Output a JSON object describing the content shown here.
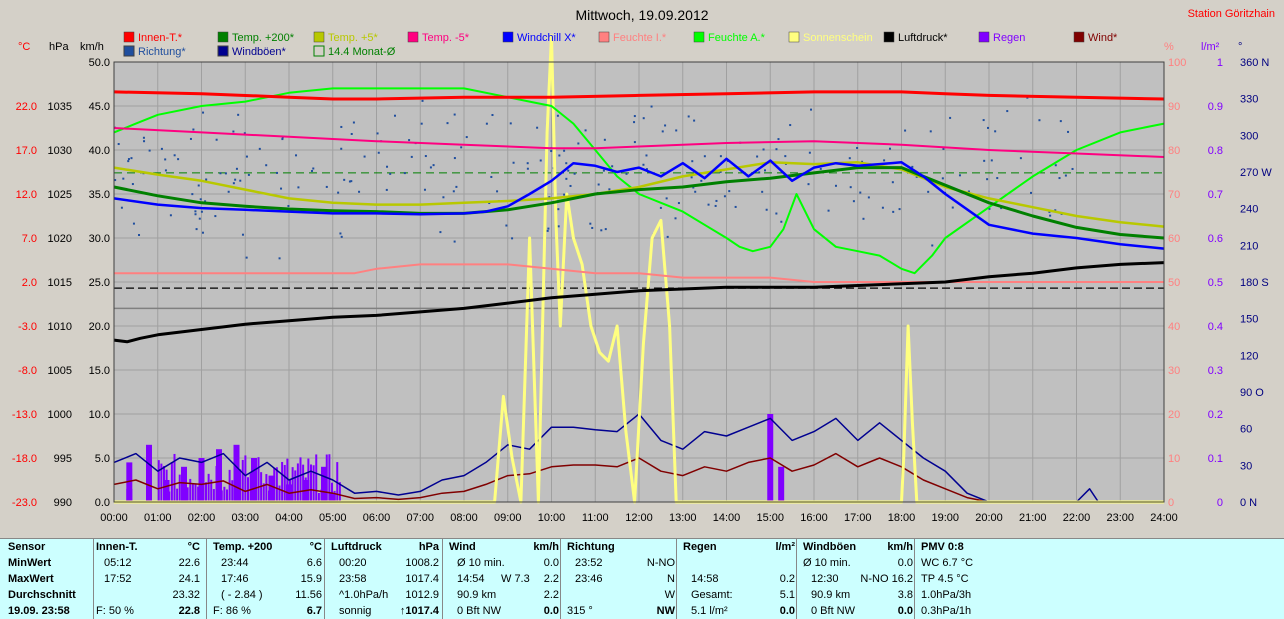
{
  "title": "Mittwoch, 19.09.2012",
  "station": "Station Göritzhain",
  "colors": {
    "innen": "#ff0000",
    "richtung": "#1f4e9e",
    "temp200": "#008000",
    "windboeen": "#000090",
    "temp5": "#b8c800",
    "monat": "#008000",
    "tempm5": "#ff0080",
    "windchill": "#0000ff",
    "feuchteI": "#ff8080",
    "feuchteA": "#00ff00",
    "sonne": "#ffff80",
    "luftdruck": "#000000",
    "regen": "#8000ff",
    "wind": "#800000"
  },
  "legend_row1": [
    "Innen-T.*",
    "Temp. +200*",
    "Temp. +5*",
    "Temp. -5*",
    "Windchill X*",
    "Feuchte I.*",
    "Feuchte A.*",
    "Sonnenschein",
    "Luftdruck*",
    "Regen",
    "Wind*"
  ],
  "legend_row2": [
    "Richtung*",
    "Windböen*",
    "14.4 Monat-Ø"
  ],
  "axis_headers": {
    "c": "°C",
    "hpa": "hPa",
    "kmh": "km/h",
    "pct": "%",
    "lm2": "l/m²",
    "deg": "°"
  },
  "chart_data": {
    "type": "line",
    "title": "Mittwoch, 19.09.2012",
    "x_ticks": [
      "00:00",
      "01:00",
      "02:00",
      "03:00",
      "04:00",
      "05:00",
      "06:00",
      "07:00",
      "08:00",
      "09:00",
      "10:00",
      "11:00",
      "12:00",
      "13:00",
      "14:00",
      "15:00",
      "16:00",
      "17:00",
      "18:00",
      "19:00",
      "20:00",
      "21:00",
      "22:00",
      "23:00",
      "24:00"
    ],
    "y_celsius_ticks": [
      "22.0",
      "17.0",
      "12.0",
      "7.0",
      "2.0",
      "-3.0",
      "-8.0",
      "-13.0",
      "-18.0",
      "-23.0"
    ],
    "y_hpa_ticks": [
      "1035",
      "1030",
      "1025",
      "1020",
      "1015",
      "1010",
      "1005",
      "1000",
      "995",
      "990"
    ],
    "y_kmh_ticks": [
      "50.0",
      "45.0",
      "40.0",
      "35.0",
      "30.0",
      "25.0",
      "20.0",
      "15.0",
      "10.0",
      "5.0",
      "0.0"
    ],
    "y_pct_ticks": [
      "100",
      "90",
      "80",
      "70",
      "60",
      "50",
      "40",
      "30",
      "20",
      "10",
      "0"
    ],
    "y_lm2_ticks": [
      "1",
      "0.9",
      "0.8",
      "0.7",
      "0.6",
      "0.5",
      "0.4",
      "0.3",
      "0.2",
      "0.1",
      "0"
    ],
    "y_deg_ticks": [
      "360 N",
      "330",
      "300",
      "270 W",
      "240",
      "210",
      "180 S",
      "150",
      "120",
      "90 O",
      "60",
      "30",
      "0 N"
    ],
    "ylim_celsius": [
      -23,
      27
    ],
    "ylim_hpa": [
      990,
      1040
    ],
    "ylim_kmh": [
      0,
      50
    ],
    "ylim_pct": [
      0,
      100
    ],
    "ylim_lm2": [
      0,
      1
    ],
    "ylim_deg": [
      0,
      360
    ],
    "ref_line_celsius": 14.4,
    "series": [
      {
        "key": "innen",
        "axis": "celsius",
        "x": [
          0,
          2,
          4,
          5,
          6,
          8,
          10,
          12,
          14,
          16,
          18,
          19,
          20,
          22,
          24
        ],
        "y": [
          23.6,
          23.4,
          23.0,
          22.8,
          22.8,
          23.0,
          23.0,
          23.2,
          23.4,
          23.6,
          23.6,
          23.4,
          23.2,
          23.0,
          22.8
        ]
      },
      {
        "key": "tempm5",
        "axis": "celsius",
        "x": [
          0,
          2,
          4,
          6,
          8,
          10,
          11,
          12,
          14,
          16,
          18,
          20,
          22,
          24
        ],
        "y": [
          19.5,
          19.0,
          18.5,
          18.0,
          17.6,
          17.2,
          17.2,
          17.4,
          17.8,
          18.0,
          17.6,
          17.0,
          16.6,
          16.2
        ]
      },
      {
        "key": "feuchteA",
        "axis": "pct",
        "x": [
          0,
          0.5,
          1,
          2,
          3,
          4,
          5,
          6,
          7,
          8,
          9,
          9.5,
          10,
          10.5,
          11,
          11.5,
          12,
          12.5,
          13,
          13.5,
          14,
          14.3,
          14.6,
          15,
          15.3,
          15.6,
          16,
          16.5,
          17,
          17.5,
          18,
          18.3,
          18.7,
          19,
          20,
          21,
          22,
          23,
          24
        ],
        "y": [
          84,
          86,
          88,
          90,
          91,
          93,
          94,
          94,
          94,
          94,
          92,
          91,
          90,
          86,
          80,
          74,
          70,
          68,
          66,
          63,
          60,
          58,
          57,
          58,
          62,
          70,
          62,
          58,
          57,
          56,
          53,
          52,
          56,
          60,
          67,
          74,
          80,
          84,
          86
        ]
      },
      {
        "key": "temp5",
        "axis": "celsius",
        "x": [
          0,
          1,
          2,
          3,
          4,
          5,
          6,
          7,
          8,
          9,
          10,
          11,
          12,
          13,
          14,
          15,
          16,
          17,
          18,
          19,
          20,
          21,
          22,
          23,
          24
        ],
        "y": [
          15.0,
          14.2,
          13.5,
          12.5,
          11.5,
          11.0,
          10.8,
          10.8,
          11.0,
          11.2,
          11.5,
          12.0,
          12.8,
          14.0,
          14.8,
          15.6,
          15.4,
          15.6,
          14.8,
          12.8,
          11.5,
          10.5,
          9.5,
          8.8,
          8.3
        ]
      },
      {
        "key": "temp200",
        "axis": "celsius",
        "x": [
          0,
          1,
          2,
          3,
          4,
          5,
          6,
          7,
          8,
          9,
          10,
          11,
          12,
          13,
          14,
          15,
          16,
          17,
          18,
          19,
          20,
          21,
          22,
          23,
          24
        ],
        "y": [
          12.8,
          11.8,
          11.0,
          10.6,
          10.3,
          10.1,
          10.0,
          9.8,
          9.8,
          10.2,
          11.0,
          12.0,
          12.5,
          12.8,
          13.4,
          13.8,
          14.4,
          15.0,
          15.0,
          13.0,
          11.0,
          9.5,
          8.2,
          7.4,
          7.0
        ]
      },
      {
        "key": "windchill",
        "axis": "celsius",
        "x": [
          0,
          1,
          2,
          3,
          4,
          5,
          6,
          7,
          8,
          8.5,
          9,
          9.5,
          10,
          10.5,
          11,
          11.5,
          12,
          12.5,
          13,
          13.5,
          14,
          14.5,
          15,
          15.5,
          16,
          16.5,
          17,
          17.5,
          18,
          18.5,
          19,
          20,
          21,
          22,
          23,
          24
        ],
        "y": [
          11.5,
          10.8,
          10.4,
          10.2,
          10.0,
          9.8,
          9.8,
          9.7,
          9.8,
          10.0,
          10.6,
          12.0,
          13.5,
          15.5,
          15.2,
          14.5,
          15.0,
          14.0,
          15.5,
          13.8,
          16.0,
          14.0,
          15.8,
          13.5,
          15.0,
          15.5,
          15.2,
          15.4,
          15.6,
          14.0,
          12.0,
          8.5,
          7.5,
          7.0,
          6.3,
          5.8
        ]
      },
      {
        "key": "feuchteI",
        "axis": "pct",
        "x": [
          0,
          2,
          4,
          5,
          5.5,
          6,
          7,
          8,
          9,
          10,
          11,
          12,
          13,
          14,
          15,
          16,
          17,
          18,
          19,
          20,
          21,
          22,
          23,
          24
        ],
        "y": [
          52,
          52,
          52,
          52,
          52,
          53,
          54,
          54,
          54,
          53,
          52,
          52,
          51,
          51,
          51,
          50,
          50,
          50,
          50,
          50,
          50,
          50,
          50,
          50
        ]
      },
      {
        "key": "luftdruck",
        "axis": "hpa",
        "x": [
          0,
          0.3,
          0.6,
          1,
          2,
          3,
          4,
          5,
          6,
          7,
          8,
          9,
          10,
          11,
          12,
          13,
          14,
          15,
          16,
          17,
          18,
          19,
          20,
          21,
          22,
          23,
          24
        ],
        "y": [
          1008.4,
          1008.2,
          1008.6,
          1009.0,
          1009.6,
          1010.2,
          1010.6,
          1011.0,
          1011.2,
          1011.6,
          1012.0,
          1012.6,
          1013.2,
          1013.6,
          1014.0,
          1014.2,
          1014.4,
          1014.4,
          1014.4,
          1014.6,
          1014.8,
          1015.0,
          1015.6,
          1016.0,
          1016.6,
          1017.0,
          1017.2
        ]
      },
      {
        "key": "sonne",
        "axis": "kmh",
        "x": [
          0,
          8.7,
          8.9,
          9.1,
          9.3,
          9.5,
          9.7,
          9.9,
          10.0,
          10.1,
          10.2,
          10.35,
          10.5,
          10.7,
          10.9,
          11.1,
          11.3,
          11.5,
          11.7,
          11.9,
          12.1,
          12.3,
          12.5,
          12.7,
          12.85,
          13.0,
          18.0,
          18.05,
          18.15,
          18.25,
          18.35,
          18.5,
          24
        ],
        "y": [
          0,
          0,
          12,
          5,
          0,
          30,
          0,
          42,
          53,
          32,
          20,
          35,
          30,
          27,
          20,
          17,
          16,
          20,
          8,
          0,
          18,
          30,
          32,
          20,
          0,
          0,
          0,
          5,
          20,
          9,
          0,
          0,
          0
        ]
      },
      {
        "key": "windboeen",
        "axis": "kmh",
        "x": [
          0,
          0.5,
          1,
          1.5,
          2,
          2.5,
          3,
          3.5,
          4,
          4.5,
          5,
          5.5,
          6,
          6.5,
          7,
          7.5,
          8,
          8.5,
          9,
          9.5,
          10,
          10.5,
          11,
          11.5,
          12,
          12.5,
          13,
          13.5,
          14,
          14.5,
          15,
          15.5,
          16,
          16.5,
          17,
          17.5,
          18,
          18.5,
          19,
          19.5,
          20,
          21,
          22,
          22.3,
          22.5,
          23,
          24
        ],
        "y": [
          4.5,
          5.5,
          3.5,
          5,
          4.5,
          5.5,
          3,
          4.5,
          2.5,
          3.5,
          2.5,
          1,
          1.2,
          0.8,
          1.2,
          2.5,
          3,
          4.5,
          6.5,
          6,
          8.5,
          8.5,
          8.2,
          8,
          10,
          7,
          6,
          8,
          7.5,
          8.5,
          9.5,
          7,
          8,
          9.5,
          7,
          9,
          7,
          5,
          3.5,
          1,
          0,
          0,
          0,
          1.5,
          0,
          0,
          0
        ]
      },
      {
        "key": "wind",
        "axis": "kmh",
        "x": [
          0,
          0.5,
          1,
          1.5,
          2,
          2.5,
          3,
          3.5,
          4,
          4.5,
          5,
          5.5,
          6,
          6.5,
          7,
          7.5,
          8,
          8.5,
          9,
          9.5,
          10,
          10.5,
          11,
          11.5,
          12,
          12.5,
          13,
          13.5,
          14,
          14.5,
          15,
          15.5,
          16,
          16.5,
          17,
          17.5,
          18,
          18.5,
          19,
          19.5,
          20,
          21,
          22,
          23,
          24
        ],
        "y": [
          2,
          2.5,
          1.5,
          2.2,
          2,
          2.4,
          1.2,
          2,
          1,
          1.4,
          1,
          0.4,
          0.5,
          0.3,
          0.5,
          1,
          1.2,
          2,
          3,
          3.2,
          4,
          4.2,
          4.2,
          4,
          5,
          3.5,
          3,
          4,
          3.5,
          4.5,
          5,
          3.5,
          4.2,
          5.5,
          4,
          5,
          4,
          2.5,
          1.5,
          0.5,
          0,
          0,
          0,
          0,
          0
        ]
      }
    ],
    "regen_bars": {
      "axis": "lm2",
      "x": [
        0.35,
        0.35,
        0.8,
        1.2,
        1.6,
        2.0,
        2.4,
        2.8,
        3.2,
        3.6,
        4.0,
        4.4,
        4.8,
        5.0,
        15.0,
        15.25
      ],
      "y": [
        0.09,
        0.03,
        0.13,
        0.05,
        0.08,
        0.1,
        0.12,
        0.13,
        0.1,
        0.06,
        0.04,
        0.05,
        0.08,
        0.02,
        0.2,
        0.08
      ]
    },
    "richtung_scatter_deg": [
      250,
      270,
      290,
      230,
      260,
      300,
      280,
      240,
      310,
      250,
      270,
      285,
      265,
      295,
      275
    ]
  },
  "table": {
    "sensor": {
      "h": "Sensor",
      "r1": "MinWert",
      "r2": "MaxWert",
      "r3": "Durchschnitt",
      "r4": "19.09. 23:58"
    },
    "innen": {
      "h": "Innen-T.",
      "u": "°C",
      "r1a": "05:12",
      "r1b": "22.6",
      "r2a": "17:52",
      "r2b": "24.1",
      "r3b": "23.32",
      "r4a": "F: 50 %",
      "r4b": "22.8"
    },
    "temp200": {
      "h": "Temp. +200",
      "u": "°C",
      "r1a": "23:44",
      "r1b": "6.6",
      "r2a": "17:46",
      "r2b": "15.9",
      "r3a": "( - 2.84 )",
      "r3b": "11.56",
      "r4a": "F: 86 %",
      "r4b": "6.7"
    },
    "luftdruck": {
      "h": "Luftdruck",
      "u": "hPa",
      "r1a": "00:20",
      "r1b": "1008.2",
      "r2a": "23:58",
      "r2b": "1017.4",
      "r3a": "^1.0hPa/h",
      "r3b": "1012.9",
      "r4a": "sonnig",
      "r4b": "↑1017.4"
    },
    "wind": {
      "h": "Wind",
      "u": "km/h",
      "r1a": "Ø 10 min.",
      "r1b": "0.0",
      "r2a": "14:54",
      "r2m": "W 7.3",
      "r2b": "2.2",
      "r3a": "90.9 km",
      "r3b": "2.2",
      "r4a": "0 Bft NW",
      "r4b": "0.0"
    },
    "richtung": {
      "h": "Richtung",
      "r1a": "23:52",
      "r1b": "N-NO",
      "r2a": "23:46",
      "r2b": "N",
      "r3b": "W",
      "r4a": "315 °",
      "r4b": "NW"
    },
    "regen": {
      "h": "Regen",
      "u": "l/m²",
      "r2a": "14:58",
      "r2b": "0.2",
      "r3a": "Gesamt:",
      "r3b": "5.1",
      "r4a": "5.1 l/m²",
      "r4b": "0.0"
    },
    "windboeen": {
      "h": "Windböen",
      "u": "km/h",
      "r1a": "Ø 10 min.",
      "r1b": "0.0",
      "r2a": "12:30",
      "r2m": "N-NO 16.2",
      "r3a": "90.9 km",
      "r3b": "3.8",
      "r4a": "0 Bft NW",
      "r4b": "0.0"
    },
    "pmv": {
      "h": "PMV 0:8",
      "r1": "WC 6.7 °C",
      "r2": "TP 4.5 °C",
      "r3": "1.0hPa/3h",
      "r4": "0.3hPa/1h"
    }
  }
}
